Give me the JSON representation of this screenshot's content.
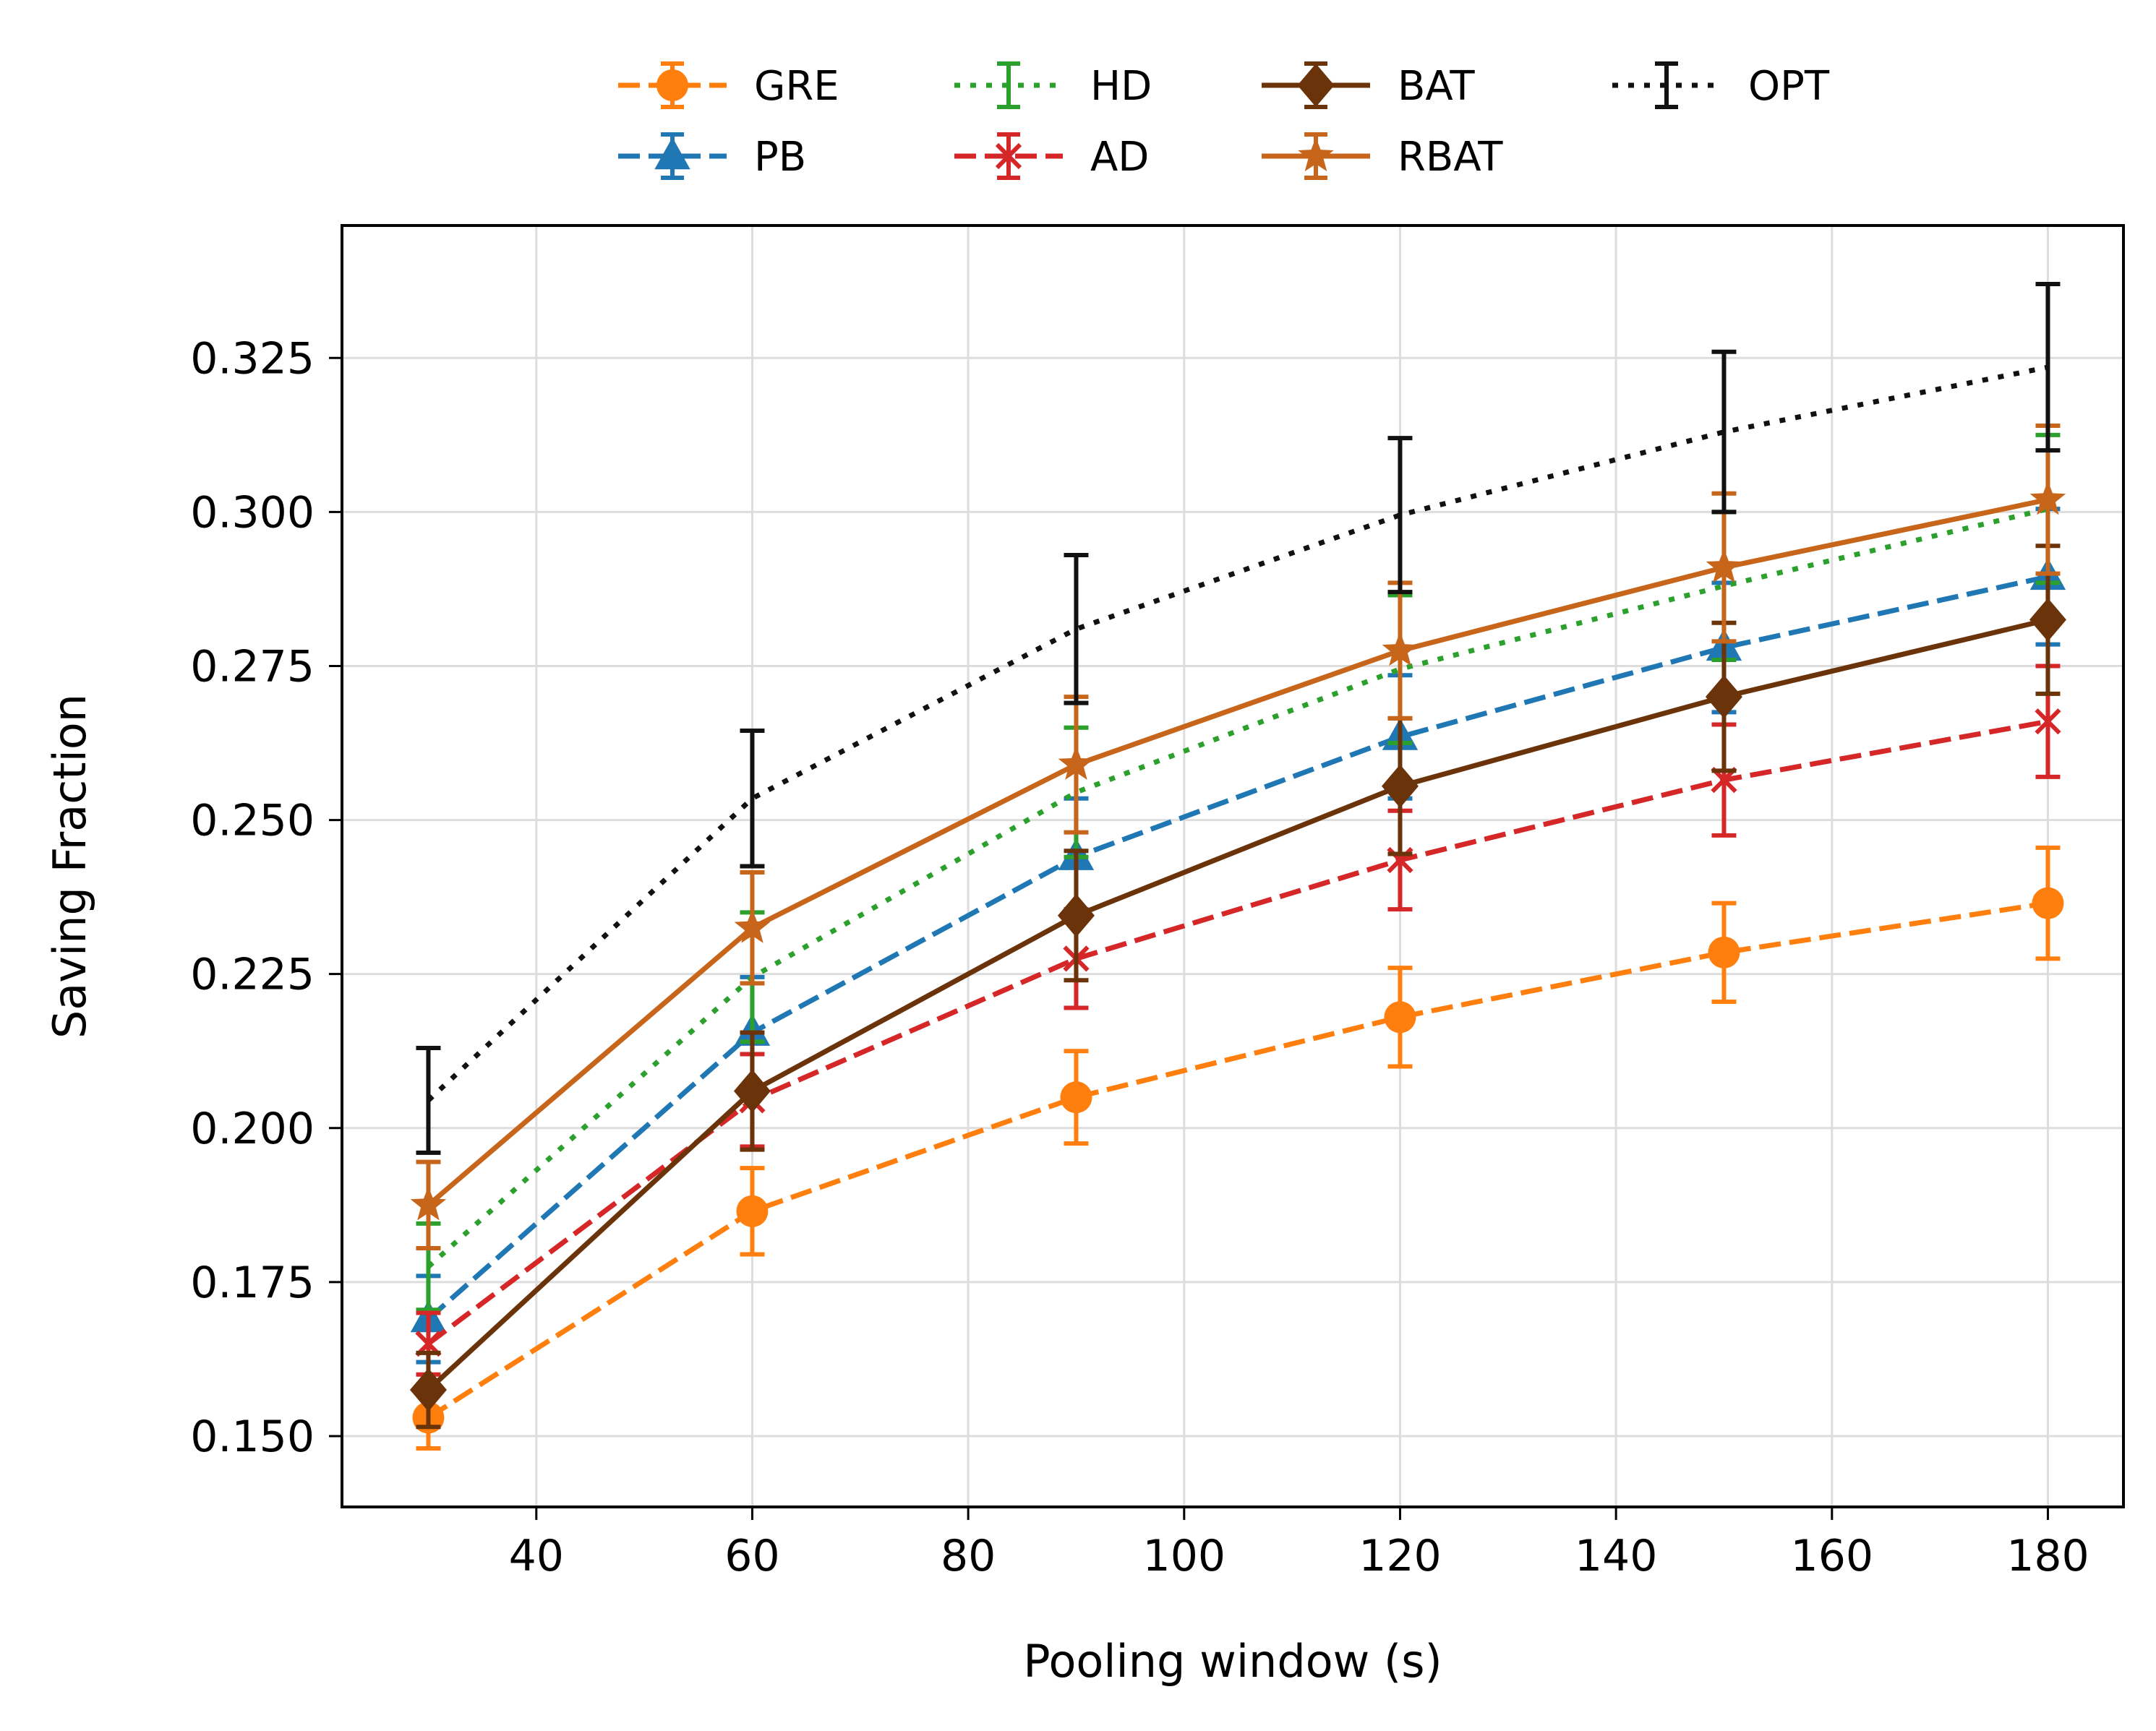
{
  "chart_data": {
    "type": "line",
    "title": "",
    "xlabel": "Pooling window (s)",
    "ylabel": "Saving Fraction",
    "x": [
      30,
      60,
      90,
      120,
      150,
      180
    ],
    "xlim": [
      22,
      187
    ],
    "ylim": [
      0.1385,
      0.3465
    ],
    "xticks": [
      40,
      60,
      80,
      100,
      120,
      140,
      160,
      180
    ],
    "xtick_labels": [
      "40",
      "60",
      "80",
      "100",
      "120",
      "140",
      "160",
      "180"
    ],
    "yticks": [
      0.15,
      0.175,
      0.2,
      0.225,
      0.25,
      0.275,
      0.3,
      0.325
    ],
    "ytick_labels": [
      "0.150",
      "0.175",
      "0.200",
      "0.225",
      "0.250",
      "0.275",
      "0.300",
      "0.325"
    ],
    "grid": true,
    "legend_position": "top-center-outside",
    "series": [
      {
        "name": "GRE",
        "color": "#ff7f0e",
        "line": "dashed",
        "marker": "circle",
        "values": [
          0.153,
          0.1865,
          0.205,
          0.218,
          0.2285,
          0.2365
        ],
        "errors": [
          0.005,
          0.007,
          0.0075,
          0.008,
          0.008,
          0.009
        ]
      },
      {
        "name": "PB",
        "color": "#1f77b4",
        "line": "dashed",
        "marker": "triangle",
        "values": [
          0.169,
          0.2155,
          0.244,
          0.2635,
          0.278,
          0.2895
        ],
        "errors": [
          0.007,
          0.009,
          0.0095,
          0.01,
          0.0105,
          0.011
        ]
      },
      {
        "name": "HD",
        "color": "#2ca02c",
        "line": "dotted",
        "marker": "none",
        "values": [
          0.1775,
          0.2245,
          0.2545,
          0.2745,
          0.288,
          0.3005
        ],
        "errors": [
          0.007,
          0.0105,
          0.0105,
          0.012,
          0.012,
          0.012
        ]
      },
      {
        "name": "AD",
        "color": "#d62728",
        "line": "dashed",
        "marker": "x",
        "values": [
          0.165,
          0.2045,
          0.2275,
          0.2435,
          0.2565,
          0.266
        ],
        "errors": [
          0.005,
          0.0075,
          0.008,
          0.008,
          0.009,
          0.009
        ]
      },
      {
        "name": "BAT",
        "color": "#6a3309",
        "line": "solid",
        "marker": "diamond",
        "values": [
          0.1575,
          0.206,
          0.2345,
          0.2555,
          0.27,
          0.2825
        ],
        "errors": [
          0.006,
          0.0095,
          0.0105,
          0.011,
          0.012,
          0.012
        ]
      },
      {
        "name": "RBAT",
        "color": "#c7651b",
        "line": "solid",
        "marker": "star",
        "values": [
          0.1875,
          0.2325,
          0.259,
          0.2775,
          0.291,
          0.302
        ],
        "errors": [
          0.007,
          0.009,
          0.011,
          0.011,
          0.012,
          0.012
        ]
      },
      {
        "name": "OPT",
        "color": "#111111",
        "line": "dotted",
        "marker": "none",
        "values": [
          0.2045,
          0.2535,
          0.281,
          0.2995,
          0.313,
          0.3235
        ],
        "errors": [
          0.0085,
          0.011,
          0.012,
          0.0125,
          0.013,
          0.0135
        ]
      }
    ]
  }
}
